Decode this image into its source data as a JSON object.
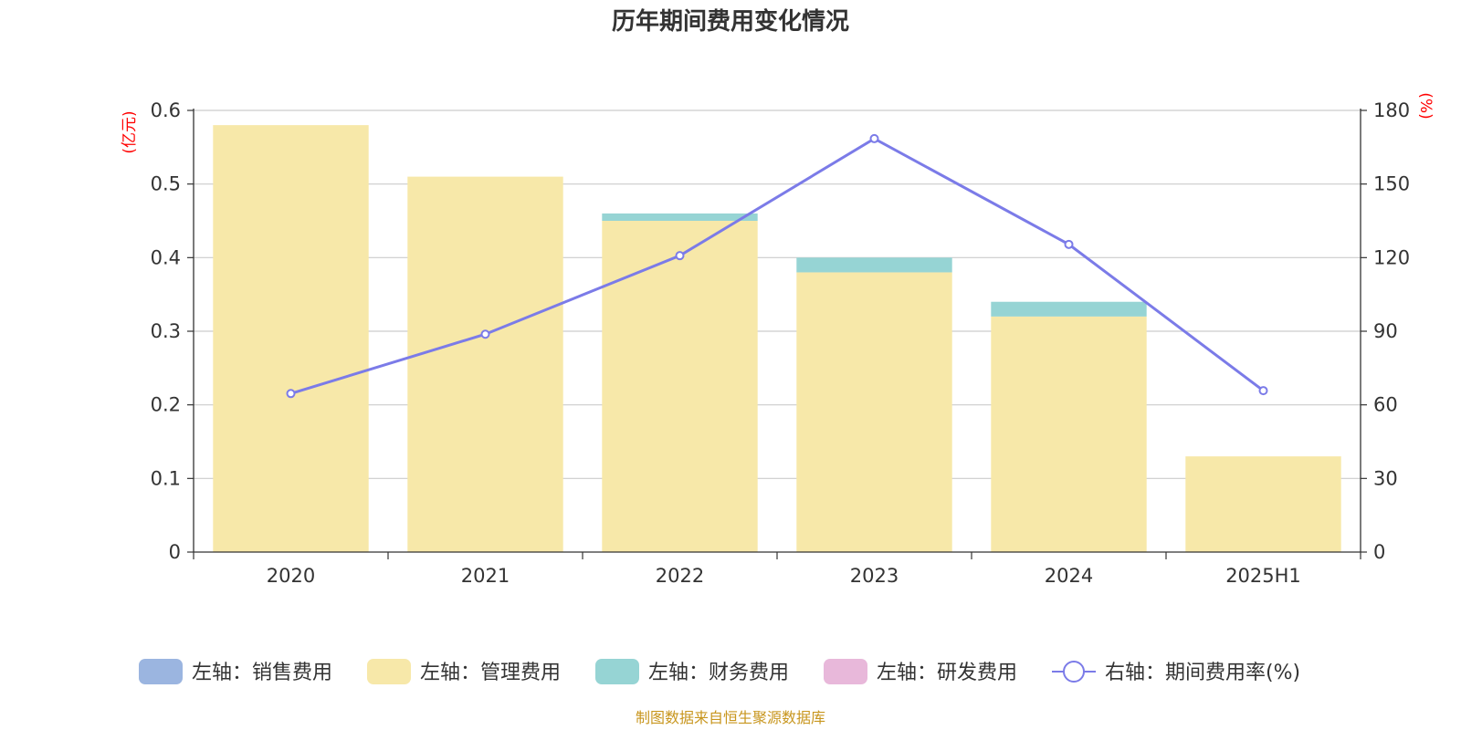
{
  "chart_data": {
    "type": "bar",
    "title": "历年期间费用变化情况",
    "categories": [
      "2020",
      "2021",
      "2022",
      "2023",
      "2024",
      "2025H1"
    ],
    "left_axis": {
      "unit": "(亿元)",
      "ticks": [
        "0",
        "0.1",
        "0.2",
        "0.3",
        "0.4",
        "0.5",
        "0.6"
      ],
      "ylim": [
        0,
        0.6
      ]
    },
    "right_axis": {
      "unit": "(%)",
      "ticks": [
        "0",
        "30",
        "60",
        "90",
        "120",
        "150",
        "180"
      ],
      "ylim": [
        0,
        180
      ]
    },
    "stacked": true,
    "series": [
      {
        "name": "左轴：销售费用",
        "type": "bar",
        "axis": "left",
        "color": "#9bb5e0",
        "values": [
          0,
          0,
          0,
          0,
          0,
          0
        ]
      },
      {
        "name": "左轴：管理费用",
        "type": "bar",
        "axis": "left",
        "color": "#f7e8a9",
        "values": [
          0.58,
          0.51,
          0.45,
          0.38,
          0.32,
          0.13
        ]
      },
      {
        "name": "左轴：财务费用",
        "type": "bar",
        "axis": "left",
        "color": "#96d4d4",
        "values": [
          0,
          0,
          0.01,
          0.02,
          0.02,
          0
        ]
      },
      {
        "name": "左轴：研发费用",
        "type": "bar",
        "axis": "left",
        "color": "#e8b8da",
        "values": [
          0,
          0,
          0,
          0,
          0,
          0
        ]
      },
      {
        "name": "右轴：期间费用率(%)",
        "type": "line",
        "axis": "right",
        "color": "#7b7be8",
        "values": [
          64.6,
          88.8,
          120.8,
          168.5,
          125.4,
          65.8
        ]
      }
    ],
    "grid": true,
    "legend_position": "bottom"
  },
  "source": "制图数据来自恒生聚源数据库"
}
